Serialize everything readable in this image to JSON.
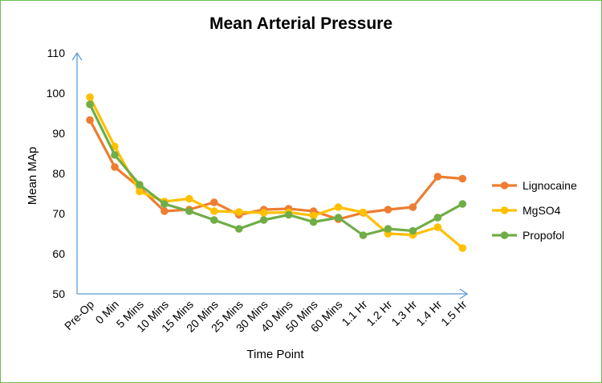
{
  "chart_data": {
    "type": "line",
    "title": "Mean Arterial Pressure",
    "xlabel": "Time Point",
    "ylabel": "Mean MAp",
    "ylim": [
      50,
      110
    ],
    "yticks": [
      50,
      60,
      70,
      80,
      90,
      100,
      110
    ],
    "categories": [
      "Pre-Op",
      "0 Min",
      "5 Mins",
      "10 Mins",
      "15 Mins",
      "20 Mins",
      "25 Mins",
      "30 Mins",
      "40 Mins",
      "50 Mins",
      "60 Mins",
      "1.1 Hr",
      "1.2 Hr",
      "1.3 Hr",
      "1.4 Hr",
      "1.5 Hr"
    ],
    "series": [
      {
        "name": "Lignocaine",
        "color": "#ed7d31",
        "values": [
          93.3,
          81.6,
          76.5,
          70.6,
          71.0,
          72.8,
          69.7,
          71.0,
          71.2,
          70.6,
          68.6,
          70.2,
          71.0,
          71.6,
          79.2,
          78.7
        ]
      },
      {
        "name": "MgSO4",
        "color": "#ffc000",
        "values": [
          99.0,
          86.7,
          75.5,
          73.0,
          73.7,
          70.6,
          70.4,
          70.2,
          70.3,
          69.5,
          71.6,
          70.3,
          65.0,
          64.7,
          66.6,
          61.4
        ]
      },
      {
        "name": "Propofol",
        "color": "#70ad47",
        "values": [
          97.2,
          84.6,
          77.2,
          72.4,
          70.6,
          68.4,
          66.2,
          68.4,
          69.7,
          67.9,
          69.0,
          64.6,
          66.2,
          65.7,
          69.0,
          72.4
        ]
      }
    ],
    "axis_color": "#5b9bd5",
    "grid": false,
    "legend_position": "right"
  }
}
